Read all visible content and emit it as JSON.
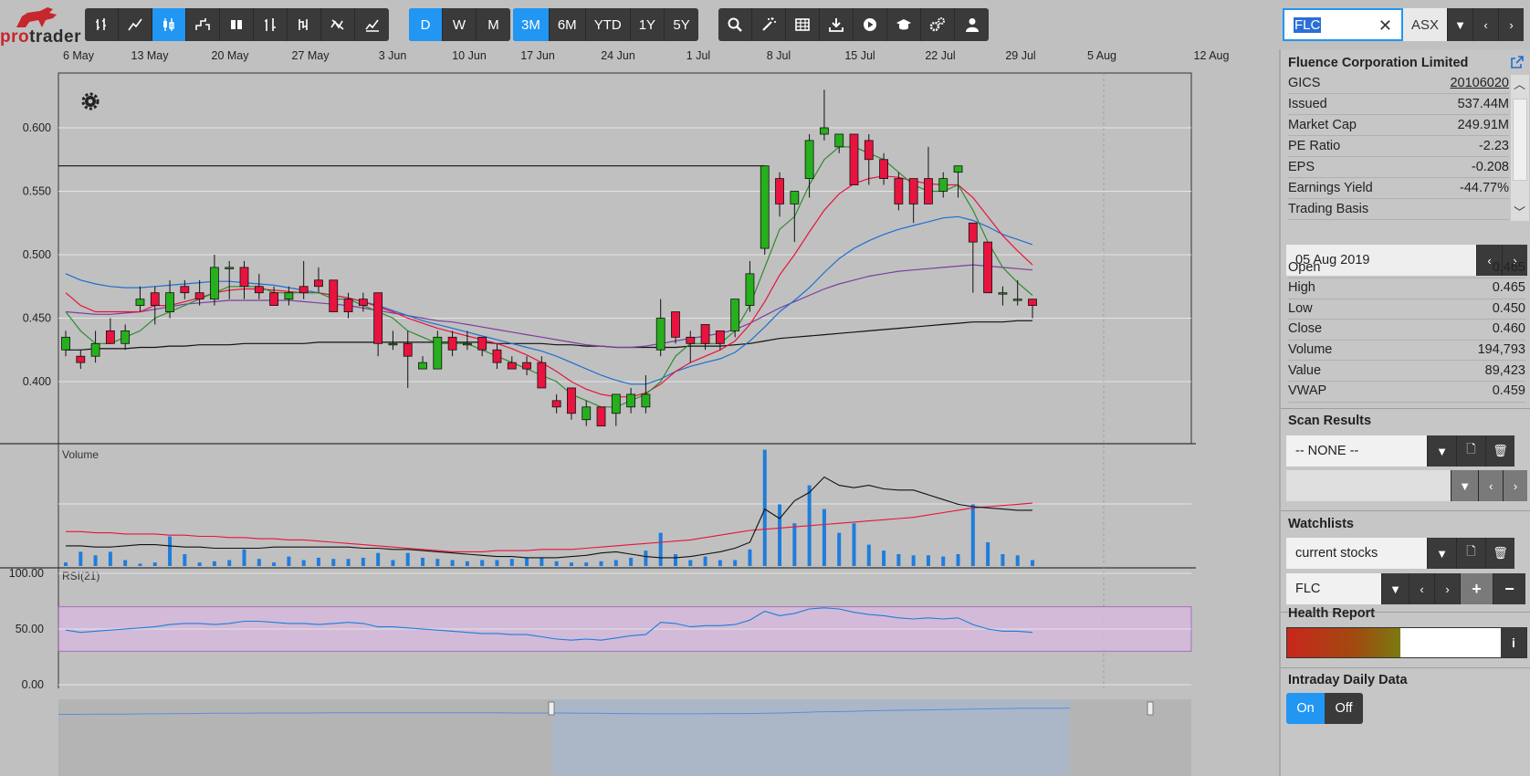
{
  "app": {
    "logo_text_pro": "pro",
    "logo_text_rest": "trader"
  },
  "toolbar": {
    "chart_types": [
      "ohlc-icon",
      "line-icon",
      "candlestick-icon",
      "step-icon",
      "hollow-candle-icon",
      "hlc-icon",
      "kagi-icon",
      "renko-icon",
      "mountain-icon"
    ],
    "active_chart_type": 2,
    "intervals": [
      "D",
      "W",
      "M"
    ],
    "active_interval": 0,
    "ranges": [
      "3M",
      "6M",
      "YTD",
      "1Y",
      "5Y"
    ],
    "active_range": 0,
    "tools": [
      "search-icon",
      "magic-wand-icon",
      "table-icon",
      "download-icon",
      "play-icon",
      "education-icon",
      "settings-icon",
      "user-icon"
    ]
  },
  "symbol": {
    "code": "FLC",
    "exchange": "ASX"
  },
  "chart_data": {
    "type": "candlestick",
    "x_labels": [
      "6 May",
      "13 May",
      "20 May",
      "27 May",
      "3 Jun",
      "10 Jun",
      "17 Jun",
      "24 Jun",
      "1 Jul",
      "8 Jul",
      "15 Jul",
      "22 Jul",
      "29 Jul",
      "5 Aug",
      "12 Aug"
    ],
    "price_ticks": [
      "0.600",
      "0.550",
      "0.500",
      "0.450",
      "0.400"
    ],
    "ylim": [
      0.36,
      0.64
    ],
    "horizontal_line": 0.57,
    "candles": [
      {
        "d": "06 May",
        "o": 0.425,
        "h": 0.44,
        "l": 0.42,
        "c": 0.435
      },
      {
        "d": "07 May",
        "o": 0.42,
        "h": 0.425,
        "l": 0.41,
        "c": 0.415
      },
      {
        "d": "08 May",
        "o": 0.42,
        "h": 0.44,
        "l": 0.415,
        "c": 0.43
      },
      {
        "d": "09 May",
        "o": 0.44,
        "h": 0.45,
        "l": 0.43,
        "c": 0.43
      },
      {
        "d": "10 May",
        "o": 0.43,
        "h": 0.445,
        "l": 0.425,
        "c": 0.44
      },
      {
        "d": "13 May",
        "o": 0.46,
        "h": 0.475,
        "l": 0.455,
        "c": 0.465
      },
      {
        "d": "14 May",
        "o": 0.47,
        "h": 0.475,
        "l": 0.445,
        "c": 0.46
      },
      {
        "d": "15 May",
        "o": 0.455,
        "h": 0.48,
        "l": 0.45,
        "c": 0.47
      },
      {
        "d": "16 May",
        "o": 0.475,
        "h": 0.48,
        "l": 0.465,
        "c": 0.47
      },
      {
        "d": "17 May",
        "o": 0.47,
        "h": 0.48,
        "l": 0.46,
        "c": 0.465
      },
      {
        "d": "20 May",
        "o": 0.465,
        "h": 0.5,
        "l": 0.46,
        "c": 0.49
      },
      {
        "d": "21 May",
        "o": 0.49,
        "h": 0.495,
        "l": 0.465,
        "c": 0.49
      },
      {
        "d": "22 May",
        "o": 0.49,
        "h": 0.495,
        "l": 0.465,
        "c": 0.475
      },
      {
        "d": "23 May",
        "o": 0.475,
        "h": 0.485,
        "l": 0.465,
        "c": 0.47
      },
      {
        "d": "24 May",
        "o": 0.47,
        "h": 0.475,
        "l": 0.46,
        "c": 0.46
      },
      {
        "d": "27 May",
        "o": 0.465,
        "h": 0.475,
        "l": 0.46,
        "c": 0.47
      },
      {
        "d": "28 May",
        "o": 0.475,
        "h": 0.495,
        "l": 0.465,
        "c": 0.47
      },
      {
        "d": "29 May",
        "o": 0.48,
        "h": 0.49,
        "l": 0.47,
        "c": 0.475
      },
      {
        "d": "30 May",
        "o": 0.48,
        "h": 0.48,
        "l": 0.455,
        "c": 0.455
      },
      {
        "d": "31 May",
        "o": 0.465,
        "h": 0.47,
        "l": 0.45,
        "c": 0.455
      },
      {
        "d": "03 Jun",
        "o": 0.465,
        "h": 0.47,
        "l": 0.455,
        "c": 0.46
      },
      {
        "d": "04 Jun",
        "o": 0.47,
        "h": 0.47,
        "l": 0.42,
        "c": 0.43
      },
      {
        "d": "05 Jun",
        "o": 0.43,
        "h": 0.44,
        "l": 0.425,
        "c": 0.43
      },
      {
        "d": "06 Jun",
        "o": 0.43,
        "h": 0.44,
        "l": 0.395,
        "c": 0.42
      },
      {
        "d": "07 Jun",
        "o": 0.41,
        "h": 0.42,
        "l": 0.41,
        "c": 0.415
      },
      {
        "d": "10 Jun",
        "o": 0.41,
        "h": 0.44,
        "l": 0.41,
        "c": 0.435
      },
      {
        "d": "11 Jun",
        "o": 0.435,
        "h": 0.44,
        "l": 0.42,
        "c": 0.425
      },
      {
        "d": "12 Jun",
        "o": 0.43,
        "h": 0.44,
        "l": 0.425,
        "c": 0.43
      },
      {
        "d": "13 Jun",
        "o": 0.435,
        "h": 0.435,
        "l": 0.42,
        "c": 0.425
      },
      {
        "d": "14 Jun",
        "o": 0.425,
        "h": 0.43,
        "l": 0.41,
        "c": 0.415
      },
      {
        "d": "17 Jun",
        "o": 0.415,
        "h": 0.42,
        "l": 0.41,
        "c": 0.41
      },
      {
        "d": "18 Jun",
        "o": 0.415,
        "h": 0.42,
        "l": 0.405,
        "c": 0.41
      },
      {
        "d": "19 Jun",
        "o": 0.415,
        "h": 0.42,
        "l": 0.395,
        "c": 0.395
      },
      {
        "d": "20 Jun",
        "o": 0.385,
        "h": 0.39,
        "l": 0.375,
        "c": 0.38
      },
      {
        "d": "21 Jun",
        "o": 0.395,
        "h": 0.395,
        "l": 0.37,
        "c": 0.375
      },
      {
        "d": "24 Jun",
        "o": 0.37,
        "h": 0.385,
        "l": 0.365,
        "c": 0.38
      },
      {
        "d": "25 Jun",
        "o": 0.38,
        "h": 0.38,
        "l": 0.365,
        "c": 0.365
      },
      {
        "d": "26 Jun",
        "o": 0.375,
        "h": 0.39,
        "l": 0.365,
        "c": 0.39
      },
      {
        "d": "27 Jun",
        "o": 0.38,
        "h": 0.395,
        "l": 0.375,
        "c": 0.39
      },
      {
        "d": "28 Jun",
        "o": 0.38,
        "h": 0.405,
        "l": 0.375,
        "c": 0.39
      },
      {
        "d": "01 Jul",
        "o": 0.425,
        "h": 0.465,
        "l": 0.42,
        "c": 0.45
      },
      {
        "d": "02 Jul",
        "o": 0.455,
        "h": 0.455,
        "l": 0.43,
        "c": 0.435
      },
      {
        "d": "03 Jul",
        "o": 0.435,
        "h": 0.44,
        "l": 0.415,
        "c": 0.43
      },
      {
        "d": "04 Jul",
        "o": 0.445,
        "h": 0.445,
        "l": 0.425,
        "c": 0.43
      },
      {
        "d": "05 Jul",
        "o": 0.44,
        "h": 0.44,
        "l": 0.425,
        "c": 0.43
      },
      {
        "d": "08 Jul",
        "o": 0.44,
        "h": 0.465,
        "l": 0.435,
        "c": 0.465
      },
      {
        "d": "09 Jul",
        "o": 0.46,
        "h": 0.495,
        "l": 0.455,
        "c": 0.485
      },
      {
        "d": "10 Jul",
        "o": 0.505,
        "h": 0.57,
        "l": 0.5,
        "c": 0.57
      },
      {
        "d": "11 Jul",
        "o": 0.56,
        "h": 0.565,
        "l": 0.53,
        "c": 0.54
      },
      {
        "d": "12 Jul",
        "o": 0.54,
        "h": 0.55,
        "l": 0.51,
        "c": 0.55
      },
      {
        "d": "15 Jul",
        "o": 0.56,
        "h": 0.595,
        "l": 0.545,
        "c": 0.59
      },
      {
        "d": "16 Jul",
        "o": 0.595,
        "h": 0.63,
        "l": 0.59,
        "c": 0.6
      },
      {
        "d": "17 Jul",
        "o": 0.585,
        "h": 0.595,
        "l": 0.58,
        "c": 0.595
      },
      {
        "d": "18 Jul",
        "o": 0.595,
        "h": 0.595,
        "l": 0.555,
        "c": 0.555
      },
      {
        "d": "19 Jul",
        "o": 0.59,
        "h": 0.595,
        "l": 0.555,
        "c": 0.575
      },
      {
        "d": "22 Jul",
        "o": 0.575,
        "h": 0.58,
        "l": 0.555,
        "c": 0.56
      },
      {
        "d": "23 Jul",
        "o": 0.56,
        "h": 0.565,
        "l": 0.535,
        "c": 0.54
      },
      {
        "d": "24 Jul",
        "o": 0.56,
        "h": 0.56,
        "l": 0.525,
        "c": 0.54
      },
      {
        "d": "25 Jul",
        "o": 0.56,
        "h": 0.585,
        "l": 0.54,
        "c": 0.54
      },
      {
        "d": "26 Jul",
        "o": 0.55,
        "h": 0.565,
        "l": 0.545,
        "c": 0.56
      },
      {
        "d": "29 Jul",
        "o": 0.565,
        "h": 0.57,
        "l": 0.545,
        "c": 0.57
      },
      {
        "d": "30 Jul",
        "o": 0.525,
        "h": 0.525,
        "l": 0.47,
        "c": 0.51
      },
      {
        "d": "31 Jul",
        "o": 0.51,
        "h": 0.51,
        "l": 0.47,
        "c": 0.47
      },
      {
        "d": "01 Aug",
        "o": 0.47,
        "h": 0.475,
        "l": 0.46,
        "c": 0.47
      },
      {
        "d": "02 Aug",
        "o": 0.465,
        "h": 0.48,
        "l": 0.46,
        "c": 0.465
      },
      {
        "d": "05 Aug",
        "o": 0.465,
        "h": 0.465,
        "l": 0.45,
        "c": 0.46
      }
    ],
    "ma_green": [
      0.455,
      0.44,
      0.43,
      0.43,
      0.435,
      0.44,
      0.45,
      0.455,
      0.46,
      0.465,
      0.47,
      0.475,
      0.475,
      0.475,
      0.47,
      0.47,
      0.47,
      0.47,
      0.465,
      0.465,
      0.46,
      0.455,
      0.45,
      0.44,
      0.435,
      0.43,
      0.43,
      0.43,
      0.425,
      0.42,
      0.415,
      0.41,
      0.405,
      0.4,
      0.39,
      0.385,
      0.38,
      0.38,
      0.385,
      0.39,
      0.4,
      0.42,
      0.43,
      0.43,
      0.43,
      0.44,
      0.46,
      0.49,
      0.52,
      0.53,
      0.555,
      0.575,
      0.585,
      0.585,
      0.58,
      0.575,
      0.565,
      0.555,
      0.55,
      0.55,
      0.555,
      0.535,
      0.51,
      0.49,
      0.478,
      0.468
    ],
    "ma_red": [
      0.47,
      0.46,
      0.455,
      0.455,
      0.455,
      0.455,
      0.46,
      0.46,
      0.463,
      0.466,
      0.47,
      0.472,
      0.473,
      0.473,
      0.472,
      0.471,
      0.47,
      0.47,
      0.468,
      0.466,
      0.463,
      0.459,
      0.455,
      0.45,
      0.446,
      0.442,
      0.439,
      0.436,
      0.433,
      0.43,
      0.426,
      0.421,
      0.415,
      0.408,
      0.4,
      0.394,
      0.39,
      0.388,
      0.388,
      0.391,
      0.398,
      0.408,
      0.415,
      0.42,
      0.425,
      0.432,
      0.445,
      0.463,
      0.484,
      0.5,
      0.518,
      0.535,
      0.548,
      0.556,
      0.56,
      0.562,
      0.561,
      0.558,
      0.556,
      0.555,
      0.555,
      0.545,
      0.53,
      0.515,
      0.503,
      0.492
    ],
    "ma_blue": [
      0.485,
      0.48,
      0.477,
      0.475,
      0.474,
      0.474,
      0.475,
      0.476,
      0.477,
      0.478,
      0.479,
      0.479,
      0.478,
      0.477,
      0.476,
      0.474,
      0.472,
      0.47,
      0.468,
      0.466,
      0.463,
      0.46,
      0.456,
      0.452,
      0.448,
      0.445,
      0.442,
      0.439,
      0.436,
      0.433,
      0.43,
      0.427,
      0.424,
      0.42,
      0.415,
      0.41,
      0.405,
      0.401,
      0.398,
      0.398,
      0.402,
      0.408,
      0.412,
      0.415,
      0.418,
      0.423,
      0.432,
      0.443,
      0.455,
      0.464,
      0.474,
      0.486,
      0.497,
      0.505,
      0.511,
      0.516,
      0.52,
      0.523,
      0.526,
      0.529,
      0.53,
      0.527,
      0.522,
      0.516,
      0.512,
      0.508
    ],
    "ma_purple": [
      0.455,
      0.454,
      0.453,
      0.453,
      0.454,
      0.455,
      0.457,
      0.459,
      0.461,
      0.462,
      0.463,
      0.464,
      0.464,
      0.464,
      0.464,
      0.464,
      0.463,
      0.462,
      0.461,
      0.46,
      0.458,
      0.456,
      0.454,
      0.452,
      0.45,
      0.448,
      0.447,
      0.445,
      0.443,
      0.441,
      0.439,
      0.437,
      0.435,
      0.433,
      0.431,
      0.429,
      0.428,
      0.427,
      0.427,
      0.428,
      0.43,
      0.432,
      0.434,
      0.436,
      0.438,
      0.441,
      0.446,
      0.452,
      0.458,
      0.463,
      0.468,
      0.473,
      0.477,
      0.48,
      0.483,
      0.485,
      0.487,
      0.488,
      0.489,
      0.49,
      0.491,
      0.492,
      0.491,
      0.49,
      0.489,
      0.488
    ],
    "ma_black": [
      0.425,
      0.425,
      0.426,
      0.426,
      0.426,
      0.427,
      0.427,
      0.428,
      0.428,
      0.429,
      0.429,
      0.429,
      0.43,
      0.43,
      0.43,
      0.43,
      0.43,
      0.431,
      0.431,
      0.431,
      0.431,
      0.431,
      0.431,
      0.431,
      0.431,
      0.431,
      0.431,
      0.431,
      0.431,
      0.43,
      0.43,
      0.43,
      0.43,
      0.429,
      0.429,
      0.428,
      0.428,
      0.427,
      0.427,
      0.427,
      0.427,
      0.427,
      0.428,
      0.428,
      0.428,
      0.429,
      0.43,
      0.432,
      0.434,
      0.435,
      0.436,
      0.437,
      0.438,
      0.439,
      0.44,
      0.441,
      0.442,
      0.443,
      0.444,
      0.445,
      0.446,
      0.447,
      0.447,
      0.447,
      0.448,
      0.448
    ],
    "volume_label": "Volume",
    "volume": [
      0.03,
      0.12,
      0.09,
      0.12,
      0.05,
      0.02,
      0.03,
      0.25,
      0.1,
      0.03,
      0.04,
      0.05,
      0.14,
      0.06,
      0.03,
      0.08,
      0.05,
      0.07,
      0.06,
      0.06,
      0.07,
      0.11,
      0.05,
      0.11,
      0.07,
      0.06,
      0.05,
      0.04,
      0.05,
      0.05,
      0.06,
      0.07,
      0.07,
      0.04,
      0.03,
      0.03,
      0.04,
      0.05,
      0.07,
      0.13,
      0.28,
      0.1,
      0.05,
      0.08,
      0.05,
      0.05,
      0.14,
      0.98,
      0.52,
      0.36,
      0.68,
      0.48,
      0.28,
      0.36,
      0.18,
      0.13,
      0.1,
      0.09,
      0.09,
      0.08,
      0.1,
      0.52,
      0.2,
      0.1,
      0.09,
      0.05
    ],
    "volume_ma_black": [
      0.17,
      0.17,
      0.16,
      0.16,
      0.17,
      0.18,
      0.18,
      0.17,
      0.16,
      0.16,
      0.15,
      0.15,
      0.15,
      0.15,
      0.16,
      0.16,
      0.16,
      0.16,
      0.16,
      0.16,
      0.15,
      0.15,
      0.14,
      0.14,
      0.13,
      0.12,
      0.11,
      0.1,
      0.09,
      0.08,
      0.08,
      0.07,
      0.07,
      0.07,
      0.08,
      0.09,
      0.11,
      0.12,
      0.1,
      0.08,
      0.07,
      0.07,
      0.08,
      0.1,
      0.12,
      0.15,
      0.2,
      0.48,
      0.4,
      0.55,
      0.62,
      0.75,
      0.68,
      0.66,
      0.68,
      0.65,
      0.64,
      0.64,
      0.6,
      0.56,
      0.52,
      0.5,
      0.49,
      0.48,
      0.47,
      0.47
    ],
    "volume_ma_red": [
      0.29,
      0.29,
      0.28,
      0.28,
      0.27,
      0.27,
      0.27,
      0.26,
      0.26,
      0.25,
      0.25,
      0.24,
      0.24,
      0.23,
      0.23,
      0.22,
      0.22,
      0.21,
      0.2,
      0.19,
      0.18,
      0.17,
      0.16,
      0.15,
      0.14,
      0.13,
      0.12,
      0.12,
      0.12,
      0.13,
      0.13,
      0.13,
      0.14,
      0.14,
      0.14,
      0.15,
      0.16,
      0.17,
      0.18,
      0.19,
      0.2,
      0.21,
      0.22,
      0.24,
      0.26,
      0.28,
      0.3,
      0.31,
      0.32,
      0.33,
      0.34,
      0.35,
      0.36,
      0.37,
      0.38,
      0.39,
      0.4,
      0.41,
      0.43,
      0.45,
      0.47,
      0.49,
      0.5,
      0.51,
      0.52,
      0.53
    ],
    "rsi_label": "RSI(21)",
    "rsi_ticks": [
      "100.00",
      "50.00",
      "0.00"
    ],
    "rsi_band": [
      30,
      70
    ],
    "rsi": [
      49,
      47,
      48,
      49,
      50,
      51,
      52,
      54,
      55,
      55,
      54,
      55,
      57,
      57,
      56,
      55,
      55,
      54,
      55,
      56,
      55,
      52,
      52,
      51,
      50,
      49,
      48,
      47,
      46,
      46,
      45,
      45,
      43,
      41,
      40,
      41,
      40,
      42,
      44,
      45,
      56,
      55,
      52,
      53,
      53,
      54,
      58,
      66,
      62,
      64,
      68,
      69,
      68,
      65,
      63,
      62,
      60,
      59,
      60,
      59,
      60,
      54,
      50,
      48,
      48,
      47
    ],
    "colors": {
      "up": "#27b01d",
      "down": "#e8133e",
      "ma_green": "#2e8b2e",
      "ma_red": "#e8133e",
      "ma_blue": "#1e6fd0",
      "ma_purple": "#7b3fa0",
      "ma_black": "#111111",
      "volume": "#1e7ddc",
      "rsi_line": "#1e7ddc",
      "rsi_band": "#d8b8e0"
    }
  },
  "panel": {
    "company_name": "Fluence Corporation Limited",
    "fundamentals": [
      {
        "label": "GICS",
        "value": "20106020"
      },
      {
        "label": "Issued",
        "value": "537.44M"
      },
      {
        "label": "Market Cap",
        "value": "249.91M"
      },
      {
        "label": "PE Ratio",
        "value": "-2.23"
      },
      {
        "label": "EPS",
        "value": "-0.208"
      },
      {
        "label": "Earnings Yield",
        "value": "-44.77%"
      },
      {
        "label": "Trading Basis",
        "value": ""
      }
    ],
    "date": "05 Aug 2019",
    "quote": [
      {
        "label": "Open",
        "value": "0.465"
      },
      {
        "label": "High",
        "value": "0.465"
      },
      {
        "label": "Low",
        "value": "0.450"
      },
      {
        "label": "Close",
        "value": "0.460"
      },
      {
        "label": "Volume",
        "value": "194,793"
      },
      {
        "label": "Value",
        "value": "89,423"
      },
      {
        "label": "VWAP",
        "value": "0.459"
      }
    ],
    "scan_results_title": "Scan Results",
    "scan_selected": "-- NONE --",
    "watchlists_title": "Watchlists",
    "watchlist_selected": "current stocks",
    "watchlist_symbol": "FLC",
    "health_title": "Health Report",
    "health_value": 0.5,
    "intraday_title": "Intraday Daily Data",
    "intraday_on": "On",
    "intraday_off": "Off"
  }
}
